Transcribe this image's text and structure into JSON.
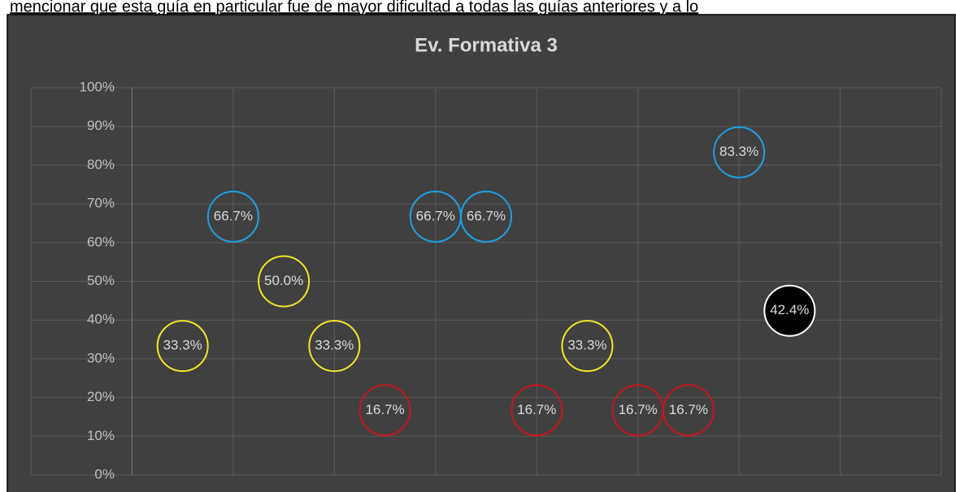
{
  "page_text": "mencionar que esta guía en particular fue de mayor dificultad a todas las guías anteriores y a lo",
  "chart_data": {
    "type": "scatter",
    "title": "Ev. Formativa 3",
    "xlim": [
      -1,
      8
    ],
    "xticks": [
      -1,
      0,
      1,
      2,
      3,
      4,
      5,
      6,
      7,
      8
    ],
    "ylim": [
      0,
      100
    ],
    "yticks": [
      {
        "value": 0,
        "label": "0%"
      },
      {
        "value": 10,
        "label": "10%"
      },
      {
        "value": 20,
        "label": "20%"
      },
      {
        "value": 30,
        "label": "30%"
      },
      {
        "value": 40,
        "label": "40%"
      },
      {
        "value": 50,
        "label": "50%"
      },
      {
        "value": 60,
        "label": "60%"
      },
      {
        "value": 70,
        "label": "70%"
      },
      {
        "value": 80,
        "label": "80%"
      },
      {
        "value": 90,
        "label": "90%"
      },
      {
        "value": 100,
        "label": "100%"
      }
    ],
    "grid": true,
    "series": [
      {
        "color": "#1f9fe0",
        "fill": "none",
        "x": [
          1,
          3,
          3.5,
          6
        ],
        "values": [
          66.7,
          66.7,
          66.7,
          83.3
        ],
        "value_labels": [
          "66.7%",
          "66.7%",
          "66.7%",
          "83.3%"
        ]
      },
      {
        "color": "#f2e626",
        "fill": "none",
        "x": [
          0.5,
          1.5,
          2,
          4.5
        ],
        "values": [
          33.3,
          50.0,
          33.3,
          33.3
        ],
        "value_labels": [
          "33.3%",
          "50.0%",
          "33.3%",
          "33.3%"
        ]
      },
      {
        "color": "#c8141e",
        "fill": "none",
        "x": [
          2.5,
          4,
          5,
          5.5
        ],
        "values": [
          16.7,
          16.7,
          16.7,
          16.7
        ],
        "value_labels": [
          "16.7%",
          "16.7%",
          "16.7%",
          "16.7%"
        ]
      },
      {
        "color": "#ffffff",
        "fill": "#000000",
        "x": [
          6.5
        ],
        "values": [
          42.4
        ],
        "value_labels": [
          "42.4%"
        ]
      }
    ]
  }
}
